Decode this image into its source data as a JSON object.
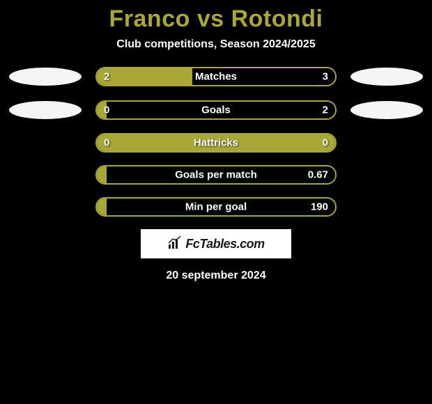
{
  "title": "Franco vs Rotondi",
  "subtitle": "Club competitions, Season 2024/2025",
  "colors": {
    "accent": "#a8a738",
    "background": "#000000",
    "text": "#ffffff",
    "logo_bg": "#ffffff",
    "logo_text": "#1a1a1a"
  },
  "avatars": {
    "left_rows_visible": [
      0,
      1
    ],
    "right_rows_visible": [
      0,
      1
    ]
  },
  "stats": [
    {
      "label": "Matches",
      "left_value": "2",
      "right_value": "3",
      "left_pct": 40
    },
    {
      "label": "Goals",
      "left_value": "0",
      "right_value": "2",
      "left_pct": 4
    },
    {
      "label": "Hattricks",
      "left_value": "0",
      "right_value": "0",
      "left_pct": 100
    },
    {
      "label": "Goals per match",
      "left_value": "",
      "right_value": "0.67",
      "left_pct": 4
    },
    {
      "label": "Min per goal",
      "left_value": "",
      "right_value": "190",
      "left_pct": 4
    }
  ],
  "logo": {
    "text": "FcTables.com"
  },
  "date": "20 september 2024"
}
